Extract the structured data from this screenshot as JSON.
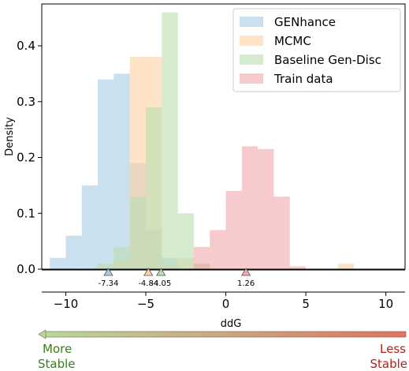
{
  "chart_data": {
    "type": "histogram",
    "ylabel": "Density",
    "xlabel": "ddG",
    "xlim": [
      -11.5,
      11.2
    ],
    "ylim": [
      0,
      0.475
    ],
    "yticks": [
      0.0,
      0.1,
      0.2,
      0.3,
      0.4
    ],
    "ytick_labels": [
      "0.0",
      "0.1",
      "0.2",
      "0.3",
      "0.4"
    ],
    "xticks": [
      -10,
      -5,
      0,
      5,
      10
    ],
    "xtick_labels": [
      "−10",
      "−5",
      "0",
      "5",
      "10"
    ],
    "bin_width": 1,
    "legend_position": "top-right",
    "series": [
      {
        "name": "GENhance",
        "color": "#a9cce3",
        "bins": [
          {
            "x0": -11,
            "y": 0.02
          },
          {
            "x0": -10,
            "y": 0.06
          },
          {
            "x0": -9,
            "y": 0.15
          },
          {
            "x0": -8,
            "y": 0.34
          },
          {
            "x0": -7,
            "y": 0.35
          },
          {
            "x0": -6,
            "y": 0.19
          },
          {
            "x0": -5,
            "y": 0.07
          },
          {
            "x0": -4,
            "y": 0.02
          }
        ]
      },
      {
        "name": "MCMC",
        "color": "#fdd0a2",
        "bins": [
          {
            "x0": -7,
            "y": 0.015
          },
          {
            "x0": -6,
            "y": 0.38
          },
          {
            "x0": -5,
            "y": 0.38
          },
          {
            "x0": -4,
            "y": 0.005
          },
          {
            "x0": -3,
            "y": 0.02
          },
          {
            "x0": -2,
            "y": 0.01
          },
          {
            "x0": 7,
            "y": 0.01
          }
        ]
      },
      {
        "name": "Baseline Gen-Disc",
        "color": "#b7ddb1",
        "bins": [
          {
            "x0": -8,
            "y": 0.01
          },
          {
            "x0": -7,
            "y": 0.04
          },
          {
            "x0": -6,
            "y": 0.13
          },
          {
            "x0": -5,
            "y": 0.29
          },
          {
            "x0": -4,
            "y": 0.46
          },
          {
            "x0": -3,
            "y": 0.1
          },
          {
            "x0": -2,
            "y": 0.01
          }
        ]
      },
      {
        "name": "Train data",
        "color": "#f2a7ac",
        "bins": [
          {
            "x0": -2,
            "y": 0.04
          },
          {
            "x0": -1,
            "y": 0.07
          },
          {
            "x0": 0,
            "y": 0.14
          },
          {
            "x0": 1,
            "y": 0.22
          },
          {
            "x0": 2,
            "y": 0.215
          },
          {
            "x0": 3,
            "y": 0.13
          },
          {
            "x0": 4,
            "y": 0.005
          }
        ]
      }
    ],
    "markers": [
      {
        "value": -7.34,
        "label": "-7.34",
        "color": "#a9cce3"
      },
      {
        "value": -4.84,
        "label": "-4.84",
        "color": "#fdd0a2"
      },
      {
        "value": -4.05,
        "label": "-4.05",
        "color": "#b7ddb1"
      },
      {
        "value": 1.26,
        "label": "1.26",
        "color": "#f2a7ac"
      }
    ]
  },
  "stability": {
    "left_line1": "More",
    "left_line2": "Stable",
    "right_line1": "Less",
    "right_line2": "Stable",
    "left_color": "#3a7d20",
    "right_color": "#b0201a"
  }
}
